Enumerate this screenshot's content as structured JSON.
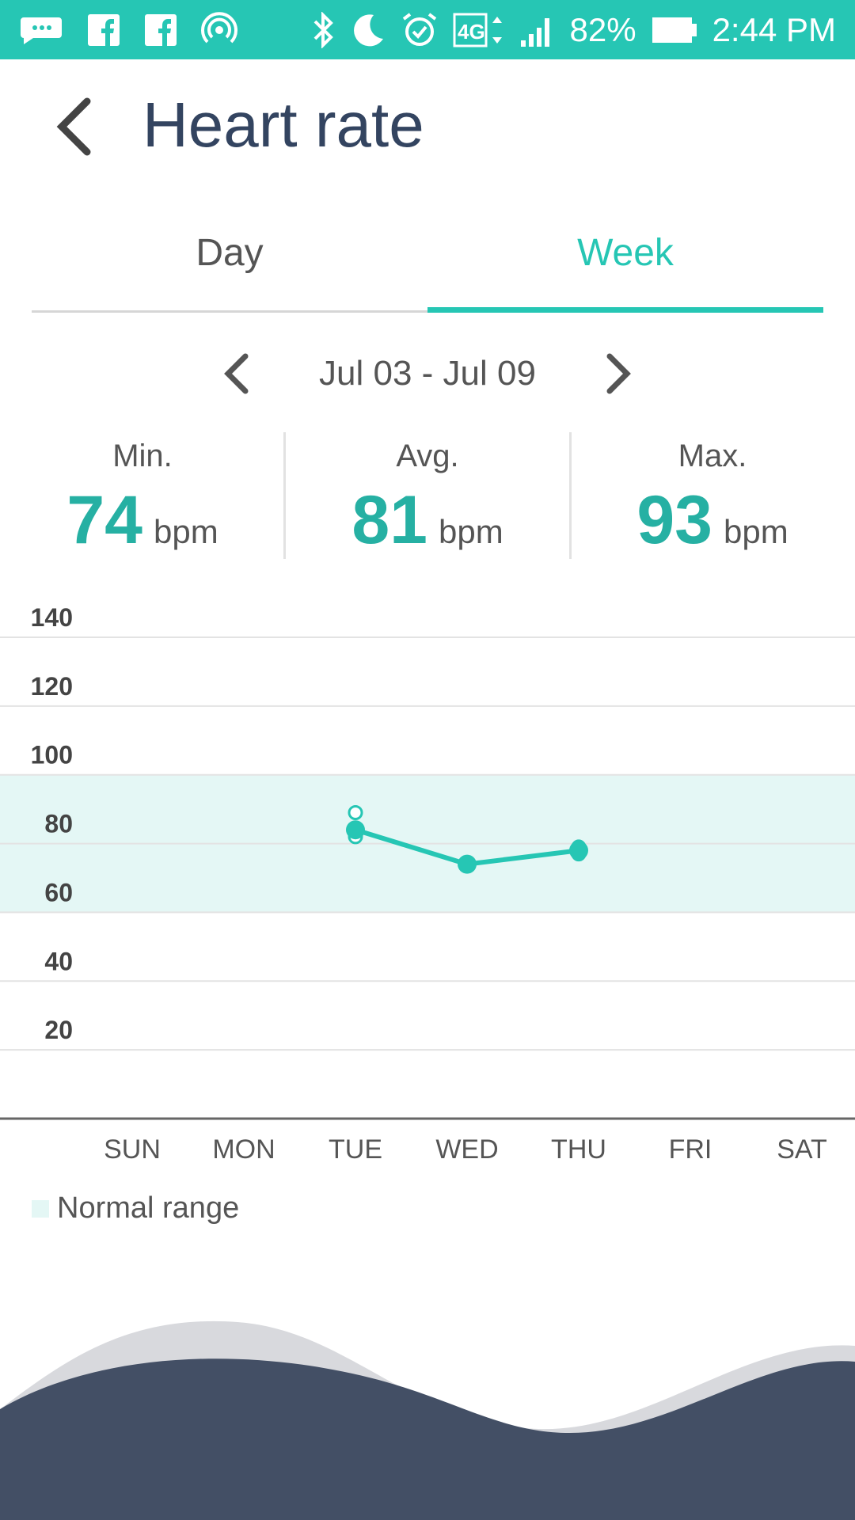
{
  "status_bar": {
    "battery": "82%",
    "time": "2:44 PM",
    "icons": [
      "messages-icon",
      "facebook-icon",
      "facebook-icon",
      "hotspot-icon",
      "bluetooth-icon",
      "moon-icon",
      "alarm-icon",
      "4g-icon",
      "signal-icon",
      "battery-icon"
    ]
  },
  "header": {
    "title": "Heart rate"
  },
  "tabs": [
    {
      "label": "Day",
      "active": false
    },
    {
      "label": "Week",
      "active": true
    }
  ],
  "date_range": "Jul 03 - Jul 09",
  "stats": {
    "min": {
      "label": "Min.",
      "value": "74",
      "unit": "bpm"
    },
    "avg": {
      "label": "Avg.",
      "value": "81",
      "unit": "bpm"
    },
    "max": {
      "label": "Max.",
      "value": "93",
      "unit": "bpm"
    }
  },
  "colors": {
    "accent": "#26c6b4",
    "value": "#26b0a3",
    "title": "#334460",
    "normal_range": "#e4f7f5",
    "wave_dark": "#434f65"
  },
  "legend": {
    "label": "Normal range"
  },
  "chart_data": {
    "type": "line",
    "categories": [
      "SUN",
      "MON",
      "TUE",
      "WED",
      "THU",
      "FRI",
      "SAT"
    ],
    "ylim": [
      0,
      140
    ],
    "yticks": [
      140,
      120,
      100,
      80,
      60,
      40,
      20
    ],
    "normal_range": [
      60,
      100
    ],
    "grid": true,
    "series": [
      {
        "values": [
          null,
          null,
          84,
          74,
          78,
          null,
          null
        ]
      }
    ],
    "readings": [
      {
        "day": "TUE",
        "values": [
          89,
          82
        ]
      },
      {
        "day": "THU",
        "values": [
          79,
          77
        ]
      }
    ]
  }
}
